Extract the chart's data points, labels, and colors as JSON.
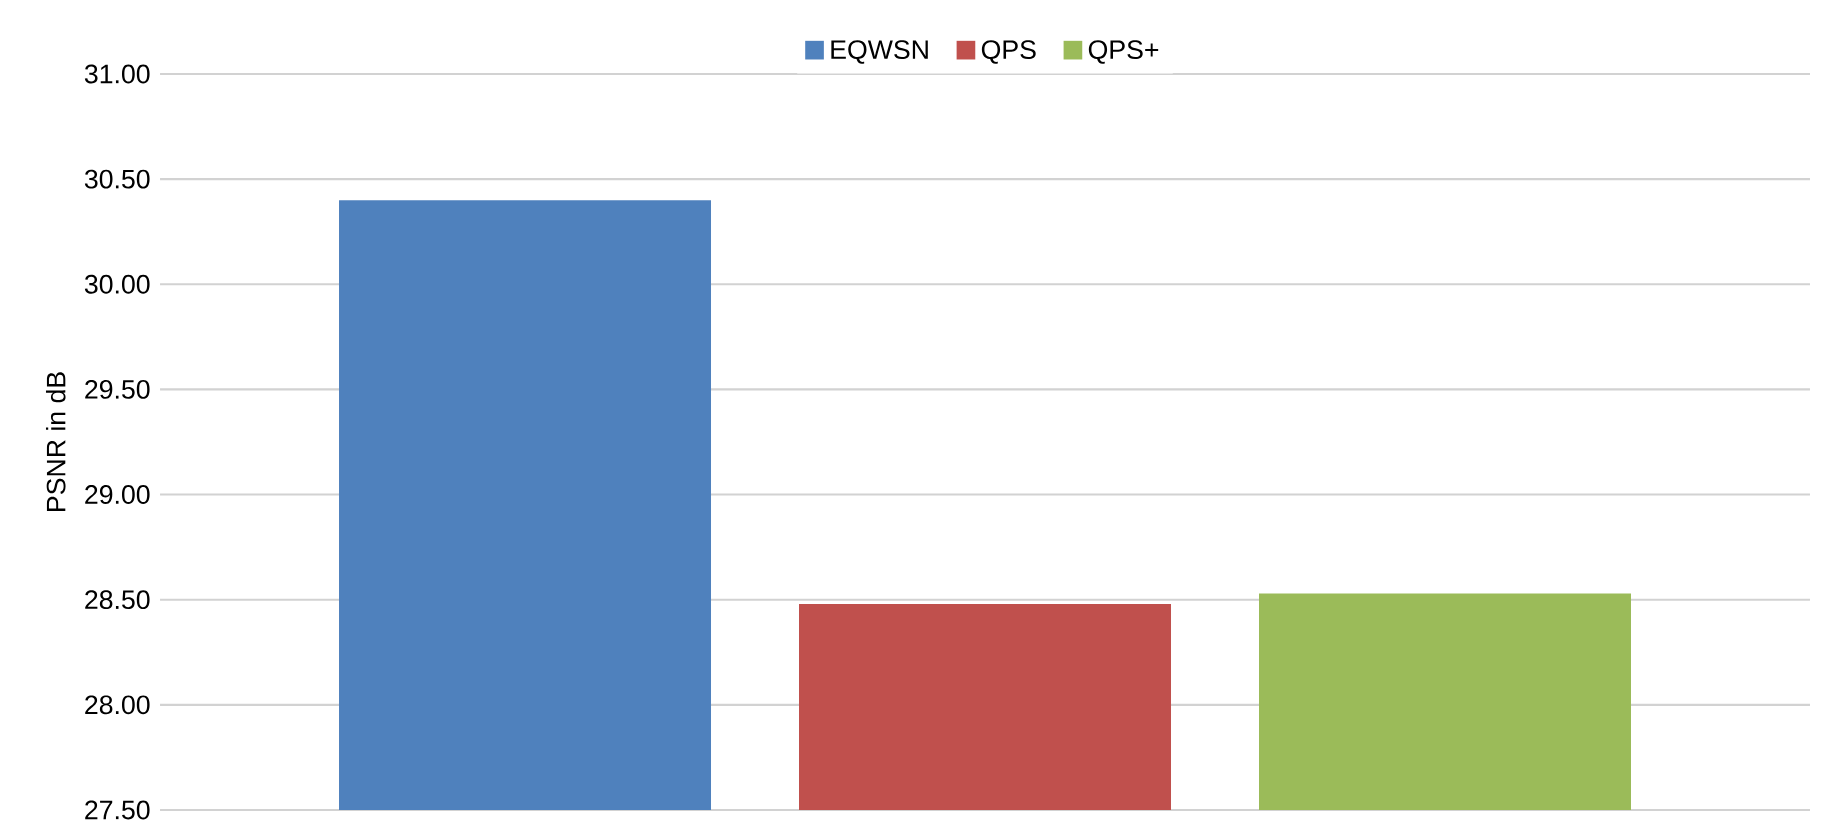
{
  "chart_data": {
    "type": "bar",
    "ylabel": "PSNR in dB",
    "categories": [
      null
    ],
    "series": [
      {
        "name": "EQWSN",
        "color": "#4f81bd",
        "values": [
          30.4
        ]
      },
      {
        "name": "QPS",
        "color": "#c0504d",
        "values": [
          28.48
        ]
      },
      {
        "name": "QPS+",
        "color": "#9bbb59",
        "values": [
          28.53
        ]
      }
    ],
    "ylim": [
      27.5,
      31.0
    ],
    "yticks": [
      {
        "value": 27.5,
        "label": "27.50"
      },
      {
        "value": 28.0,
        "label": "28.00"
      },
      {
        "value": 28.5,
        "label": "28.50"
      },
      {
        "value": 29.0,
        "label": "29.00"
      },
      {
        "value": 29.5,
        "label": "29.50"
      },
      {
        "value": 30.0,
        "label": "30.00"
      },
      {
        "value": 30.5,
        "label": "30.50"
      },
      {
        "value": 31.0,
        "label": "31.00"
      }
    ],
    "grid": "y",
    "legend": "top"
  }
}
